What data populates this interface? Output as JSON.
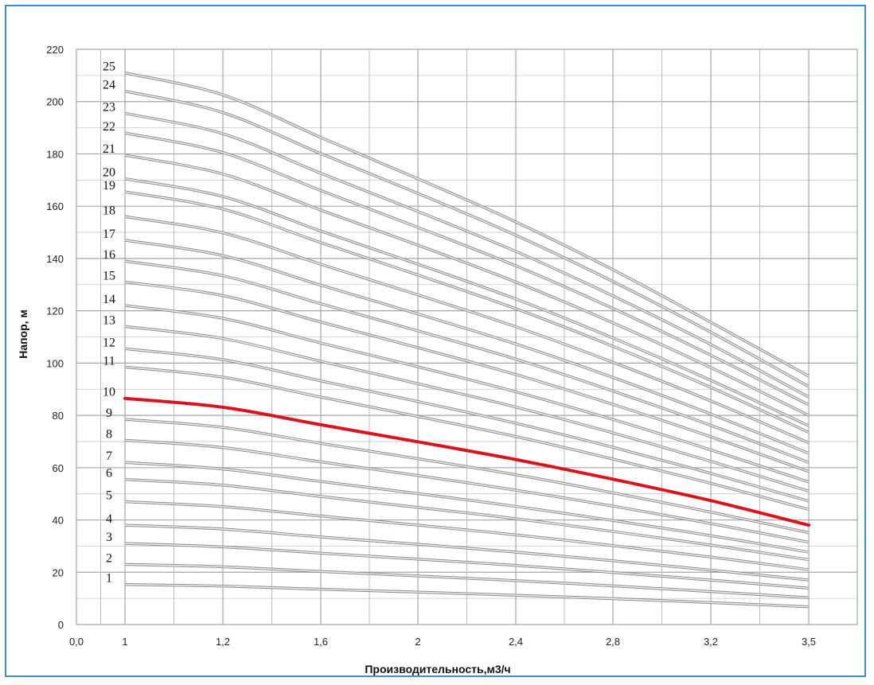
{
  "chart_data": {
    "type": "line",
    "xlabel": "Производительность,м3/ч",
    "ylabel": "Напор, м",
    "ylim": [
      0,
      220
    ],
    "y_ticks": [
      "0",
      "20",
      "40",
      "60",
      "80",
      "100",
      "120",
      "140",
      "160",
      "180",
      "200",
      "220"
    ],
    "x_ticks": [
      "0,0",
      "1",
      "1,2",
      "1,6",
      "2",
      "2,4",
      "2,8",
      "3,2",
      "3,5"
    ],
    "x": [
      1.0,
      1.2,
      1.6,
      2.0,
      2.4,
      2.8,
      3.2,
      3.5
    ],
    "grid": true,
    "highlight_color": "#d8141c",
    "line_color": "#8a8a8a",
    "series": [
      {
        "name": "1",
        "values": [
          15.3,
          14.7,
          13.5,
          12.4,
          11.2,
          9.9,
          8.4,
          6.8
        ]
      },
      {
        "name": "2",
        "values": [
          23,
          22.1,
          20.3,
          18.6,
          16.8,
          14.8,
          12.6,
          10.3
        ]
      },
      {
        "name": "3",
        "values": [
          31,
          29.7,
          27.3,
          25,
          22.6,
          19.9,
          17,
          13.9
        ]
      },
      {
        "name": "4",
        "values": [
          38,
          36.5,
          33.5,
          30.7,
          27.7,
          24.4,
          20.8,
          17
        ]
      },
      {
        "name": "5",
        "values": [
          47,
          45.1,
          41.5,
          38,
          34.3,
          30.2,
          25.8,
          21
        ]
      },
      {
        "name": "6",
        "values": [
          55.5,
          53.3,
          49,
          44.8,
          40.5,
          35.6,
          30.4,
          24.8
        ]
      },
      {
        "name": "7",
        "values": [
          62,
          59.5,
          54.7,
          50.1,
          45.2,
          39.8,
          34,
          27.7
        ]
      },
      {
        "name": "8",
        "values": [
          70.5,
          67.7,
          62.2,
          57,
          51.4,
          45.3,
          38.6,
          31.5
        ]
      },
      {
        "name": "9",
        "values": [
          78.5,
          75.4,
          69.3,
          63.4,
          57.3,
          50.4,
          43,
          35.1
        ]
      },
      {
        "name": "10",
        "values": [
          86.5,
          83.1,
          76.4,
          69.9,
          63.1,
          55.6,
          47.4,
          38
        ]
      },
      {
        "name": "11",
        "values": [
          98.5,
          94.6,
          87,
          79.6,
          71.9,
          63.3,
          54,
          44
        ]
      },
      {
        "name": "12",
        "values": [
          105.5,
          101.3,
          93.2,
          85.3,
          77,
          67.8,
          57.8,
          47.2
        ]
      },
      {
        "name": "13",
        "values": [
          114,
          109.4,
          100.7,
          92.1,
          83.2,
          73.3,
          62.4,
          51
        ]
      },
      {
        "name": "14",
        "values": [
          122,
          117.1,
          107.7,
          98.6,
          89,
          78.4,
          66.8,
          54.5
        ]
      },
      {
        "name": "15",
        "values": [
          131,
          125.8,
          115.7,
          105.9,
          95.6,
          84.2,
          71.8,
          58.5
        ]
      },
      {
        "name": "16",
        "values": [
          139,
          133.4,
          122.7,
          112.3,
          101.5,
          89.3,
          76.2,
          62
        ]
      },
      {
        "name": "17",
        "values": [
          147,
          141.1,
          129.8,
          118.8,
          107.3,
          94.5,
          80.5,
          65.5
        ]
      },
      {
        "name": "18",
        "values": [
          156,
          149.8,
          137.8,
          126.1,
          113.9,
          100.3,
          85.5,
          69.5
        ]
      },
      {
        "name": "19",
        "values": [
          165.5,
          158.9,
          146.1,
          133.7,
          120.8,
          106.4,
          90.7,
          73.5
        ]
      },
      {
        "name": "20",
        "values": [
          170.5,
          163.7,
          150.5,
          137.8,
          124.5,
          109.6,
          93.4,
          76
        ]
      },
      {
        "name": "21",
        "values": [
          179.5,
          172.3,
          158.5,
          145.1,
          131,
          115.4,
          98.3,
          80
        ]
      },
      {
        "name": "22",
        "values": [
          188,
          180.5,
          166,
          151.9,
          137.2,
          120.9,
          103,
          84
        ]
      },
      {
        "name": "23",
        "values": [
          195.5,
          187.7,
          172.6,
          158,
          142.7,
          125.7,
          107.1,
          87
        ]
      },
      {
        "name": "24",
        "values": [
          204,
          195.8,
          180.1,
          164.9,
          148.9,
          131.2,
          111.8,
          91
        ]
      },
      {
        "name": "25",
        "values": [
          211,
          202.6,
          186.3,
          170.5,
          154,
          135.7,
          115.6,
          95
        ]
      }
    ],
    "highlight_series": "10"
  }
}
